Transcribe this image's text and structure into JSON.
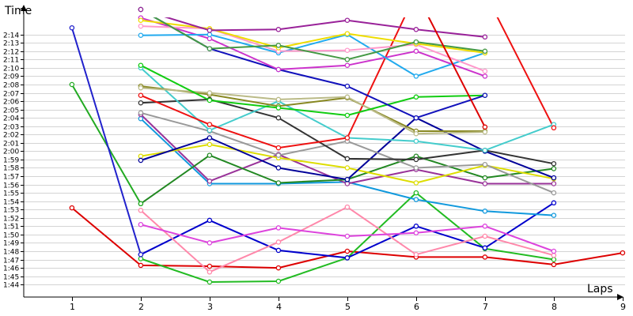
{
  "chart_data": {
    "type": "line",
    "ylabel": "Time",
    "xlabel": "Laps",
    "x": [
      1,
      2,
      3,
      4,
      5,
      6,
      7,
      8,
      9
    ],
    "x_tick_labels": [
      "1",
      "2",
      "3",
      "4",
      "5",
      "6",
      "7",
      "8",
      "9"
    ],
    "y_tick_labels": [
      "1:44",
      "1:45",
      "1:46",
      "1:47",
      "1:48",
      "1:49",
      "1:50",
      "1:51",
      "1:52",
      "1:53",
      "1:54",
      "1:55",
      "1:56",
      "1:57",
      "1:58",
      "1:59",
      "2:00",
      "2:01",
      "2:02",
      "2:03",
      "2:04",
      "2:05",
      "2:06",
      "2:07",
      "2:08",
      "2:09",
      "2:10",
      "2:11",
      "2:12",
      "2:13",
      "2:14"
    ],
    "y_tick_seconds": [
      104,
      105,
      106,
      107,
      108,
      109,
      110,
      111,
      112,
      113,
      114,
      115,
      116,
      117,
      118,
      119,
      120,
      121,
      122,
      123,
      124,
      125,
      126,
      127,
      128,
      129,
      130,
      131,
      132,
      133,
      134
    ],
    "y_unit": "seconds",
    "ylim": [
      102.5,
      137
    ],
    "xlim": [
      0.3,
      9.15
    ],
    "grid": true,
    "series": [
      {
        "color": "#dd0000",
        "values": [
          113.2,
          106.3,
          106.2,
          106.0,
          108.0,
          107.3,
          107.3,
          106.4,
          107.8
        ]
      },
      {
        "color": "#22bb22",
        "values": [
          null,
          107.1,
          104.3,
          104.4,
          107.2,
          115.0,
          108.3,
          107.0,
          null
        ]
      },
      {
        "color": "#0000cc",
        "values": [
          null,
          107.6,
          111.7,
          108.1,
          107.2,
          111.0,
          108.4,
          113.8,
          null
        ]
      },
      {
        "color": "#ff88aa",
        "values": [
          null,
          112.9,
          105.5,
          109.1,
          113.3,
          107.6,
          109.8,
          107.5,
          null
        ]
      },
      {
        "color": "#dd44dd",
        "values": [
          null,
          111.2,
          109.0,
          110.8,
          109.8,
          110.2,
          111.0,
          108.0,
          null
        ]
      },
      {
        "color": "#1199dd",
        "values": [
          null,
          123.9,
          116.1,
          116.1,
          116.3,
          114.2,
          112.8,
          112.3,
          null
        ]
      },
      {
        "color": "#993399",
        "values": [
          null,
          124.4,
          116.4,
          119.6,
          116.1,
          117.8,
          116.1,
          116.1,
          null
        ]
      },
      {
        "color": "#228822",
        "values": [
          null,
          113.7,
          119.5,
          116.2,
          116.6,
          119.4,
          116.8,
          117.9,
          null
        ]
      },
      {
        "color": "#dddd00",
        "values": [
          null,
          119.4,
          120.8,
          119.2,
          118.0,
          116.2,
          118.3,
          116.7,
          null
        ]
      },
      {
        "color": "#000099",
        "values": [
          null,
          118.9,
          121.6,
          118.0,
          116.6,
          124.0,
          120.0,
          116.8,
          null
        ]
      },
      {
        "color": "#999999",
        "values": [
          null,
          124.6,
          122.4,
          119.5,
          121.2,
          118.0,
          118.4,
          115.0,
          null
        ]
      },
      {
        "color": "#333333",
        "values": [
          null,
          125.8,
          126.2,
          124.0,
          119.1,
          119.0,
          120.1,
          118.5,
          null
        ]
      },
      {
        "color": "#44cccc",
        "values": [
          null,
          130.0,
          122.5,
          126.0,
          121.6,
          121.2,
          120.1,
          123.2,
          null
        ]
      },
      {
        "color": "#ee1111",
        "values": [
          null,
          126.7,
          123.2,
          120.4,
          121.6,
          139.0,
          139.0,
          122.8,
          null
        ]
      },
      {
        "color": "#888822",
        "values": [
          null,
          127.8,
          126.8,
          125.4,
          126.4,
          122.4,
          122.4,
          null,
          null
        ]
      },
      {
        "color": "#bbbb88",
        "values": [
          null,
          127.6,
          127.0,
          126.2,
          126.5,
          122.1,
          122.3,
          null,
          null
        ]
      },
      {
        "color": "#11cc11",
        "values": [
          null,
          130.3,
          126.1,
          125.2,
          124.3,
          126.5,
          126.7,
          null,
          null
        ]
      },
      {
        "color": "#1111bb",
        "values": [
          null,
          137.0,
          132.3,
          129.8,
          127.8,
          124.0,
          126.7,
          null,
          null
        ]
      },
      {
        "color": "#cc33cc",
        "values": [
          null,
          136.0,
          133.5,
          129.8,
          130.3,
          132.0,
          129.0,
          null,
          null
        ]
      },
      {
        "color": "#22aaee",
        "values": [
          null,
          133.9,
          134.0,
          131.8,
          134.0,
          129.0,
          131.8,
          null,
          null
        ]
      },
      {
        "color": "#ff99cc",
        "values": [
          null,
          135.0,
          134.7,
          132.0,
          132.1,
          132.8,
          129.6,
          null,
          null
        ]
      },
      {
        "color": "#eedd00",
        "values": [
          null,
          135.7,
          134.7,
          132.4,
          134.1,
          132.9,
          131.8,
          null,
          null
        ]
      },
      {
        "color": "#449944",
        "values": [
          null,
          137.0,
          132.3,
          132.7,
          131.0,
          133.1,
          132.0,
          null,
          null
        ]
      },
      {
        "color": "#992299",
        "values": [
          null,
          137.0,
          134.5,
          134.6,
          135.7,
          134.6,
          133.7,
          null,
          null
        ]
      },
      {
        "color": "#dd0000",
        "values": [
          null,
          null,
          null,
          null,
          null,
          139.0,
          122.9,
          null,
          null
        ]
      },
      {
        "color": "#22aa22",
        "values": [
          128.0,
          113.7,
          null,
          null,
          null,
          null,
          null,
          null,
          null
        ]
      },
      {
        "color": "#2222cc",
        "values": [
          134.8,
          107.6,
          null,
          null,
          null,
          null,
          null,
          null,
          null
        ]
      }
    ]
  }
}
